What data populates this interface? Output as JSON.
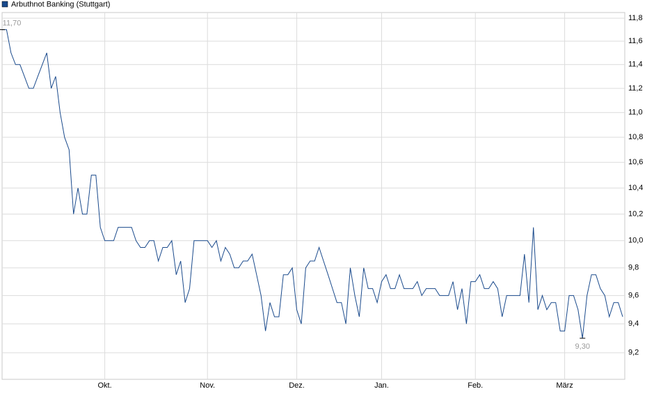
{
  "chart_data": {
    "type": "line",
    "log_scale": true,
    "grid": true,
    "legend": "top-left",
    "categories": [
      null,
      null,
      null,
      null,
      null,
      null,
      null,
      null,
      null,
      null,
      null,
      null,
      null,
      null,
      null,
      null,
      null,
      null,
      null,
      null,
      null,
      null,
      null,
      "Okt.",
      null,
      null,
      null,
      null,
      null,
      null,
      null,
      null,
      null,
      null,
      null,
      null,
      null,
      null,
      null,
      null,
      null,
      null,
      null,
      null,
      null,
      null,
      "Nov.",
      null,
      null,
      null,
      null,
      null,
      null,
      null,
      null,
      null,
      null,
      null,
      null,
      null,
      null,
      null,
      null,
      null,
      null,
      null,
      "Dez.",
      null,
      null,
      null,
      null,
      null,
      null,
      null,
      null,
      null,
      null,
      null,
      null,
      null,
      null,
      null,
      null,
      null,
      null,
      "Jan.",
      null,
      null,
      null,
      null,
      null,
      null,
      null,
      null,
      null,
      null,
      null,
      null,
      null,
      null,
      null,
      null,
      null,
      null,
      null,
      null,
      "Feb.",
      null,
      null,
      null,
      null,
      null,
      null,
      null,
      null,
      null,
      null,
      null,
      null,
      null,
      null,
      null,
      null,
      null,
      null,
      null,
      "März",
      null,
      null,
      null,
      null,
      null,
      null,
      null,
      null,
      null,
      null,
      null,
      null,
      null
    ],
    "series": [
      {
        "name": "Arbuthnot Banking (Stuttgart)",
        "color": "#1a4a8c",
        "values": [
          11.7,
          11.7,
          11.5,
          11.4,
          11.4,
          11.3,
          11.2,
          11.2,
          11.3,
          11.4,
          11.5,
          11.2,
          11.3,
          11.0,
          10.8,
          10.7,
          10.2,
          10.4,
          10.2,
          10.2,
          10.5,
          10.5,
          10.1,
          10.0,
          10.0,
          10.0,
          10.1,
          10.1,
          10.1,
          10.1,
          10.0,
          9.95,
          9.95,
          10.0,
          10.0,
          9.85,
          9.95,
          9.95,
          10.0,
          9.75,
          9.85,
          9.55,
          9.65,
          10.0,
          10.0,
          10.0,
          10.0,
          9.95,
          10.0,
          9.85,
          9.95,
          9.9,
          9.8,
          9.8,
          9.85,
          9.85,
          9.9,
          9.75,
          9.6,
          9.35,
          9.55,
          9.45,
          9.45,
          9.75,
          9.75,
          9.8,
          9.5,
          9.4,
          9.8,
          9.85,
          9.85,
          9.95,
          9.85,
          9.75,
          9.65,
          9.55,
          9.55,
          9.4,
          9.8,
          9.6,
          9.45,
          9.8,
          9.65,
          9.65,
          9.55,
          9.7,
          9.75,
          9.65,
          9.65,
          9.75,
          9.65,
          9.65,
          9.65,
          9.7,
          9.6,
          9.65,
          9.65,
          9.65,
          9.6,
          9.6,
          9.6,
          9.7,
          9.5,
          9.65,
          9.4,
          9.7,
          9.7,
          9.75,
          9.65,
          9.65,
          9.7,
          9.65,
          9.45,
          9.6,
          9.6,
          9.6,
          9.6,
          9.9,
          9.55,
          10.1,
          9.5,
          9.6,
          9.5,
          9.55,
          9.55,
          9.35,
          9.35,
          9.6,
          9.6,
          9.5,
          9.3,
          9.6,
          9.75,
          9.75,
          9.65,
          9.6,
          9.45,
          9.55,
          9.55,
          9.45
        ],
        "value_labels": [
          "11,70",
          null,
          null,
          null,
          null,
          null,
          null,
          null,
          null,
          null,
          null,
          null,
          null,
          null,
          null,
          null,
          null,
          null,
          null,
          null,
          null,
          null,
          null,
          null,
          null,
          null,
          null,
          null,
          null,
          null,
          null,
          null,
          null,
          null,
          null,
          null,
          null,
          null,
          null,
          null,
          null,
          null,
          null,
          null,
          null,
          null,
          null,
          null,
          null,
          null,
          null,
          null,
          null,
          null,
          null,
          null,
          null,
          null,
          null,
          null,
          null,
          null,
          null,
          null,
          null,
          null,
          null,
          null,
          null,
          null,
          null,
          null,
          null,
          null,
          null,
          null,
          null,
          null,
          null,
          null,
          null,
          null,
          null,
          null,
          null,
          null,
          null,
          null,
          null,
          null,
          null,
          null,
          null,
          null,
          null,
          null,
          null,
          null,
          null,
          null,
          null,
          null,
          null,
          null,
          null,
          null,
          null,
          null,
          null,
          null,
          null,
          null,
          null,
          null,
          null,
          null,
          null,
          null,
          null,
          null,
          null,
          null,
          null,
          null,
          null,
          null,
          null,
          null,
          null,
          null,
          "9,30",
          null,
          null,
          null,
          null,
          null,
          null,
          null,
          null,
          null
        ]
      }
    ],
    "ylim": [
      9.02,
      11.85
    ],
    "yticks": [
      {
        "value": 9.2,
        "label": "9,2"
      },
      {
        "value": 9.4,
        "label": "9,4"
      },
      {
        "value": 9.6,
        "label": "9,6"
      },
      {
        "value": 9.8,
        "label": "9,8"
      },
      {
        "value": 10.0,
        "label": "10,0"
      },
      {
        "value": 10.2,
        "label": "10,2"
      },
      {
        "value": 10.4,
        "label": "10,4"
      },
      {
        "value": 10.6,
        "label": "10,6"
      },
      {
        "value": 10.8,
        "label": "10,8"
      },
      {
        "value": 11.0,
        "label": "11,0"
      },
      {
        "value": 11.2,
        "label": "11,2"
      },
      {
        "value": 11.4,
        "label": "11,4"
      },
      {
        "value": 11.6,
        "label": "11,6"
      },
      {
        "value": 11.8,
        "label": "11,8"
      }
    ]
  }
}
